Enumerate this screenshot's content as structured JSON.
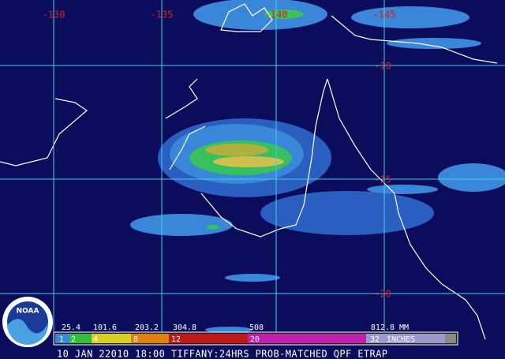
{
  "map": {
    "longitude_labels": [
      "-130",
      "-135",
      "-140",
      "-145"
    ],
    "latitude_labels": [
      "-10",
      "-15",
      "-20"
    ],
    "logo": "NOAA",
    "scale": {
      "mm_labels": [
        "25.4",
        "101.6",
        "203.2",
        "304.8",
        "508",
        "812.8 MM"
      ],
      "inch_labels": [
        "1",
        "2",
        "4",
        "8",
        "12",
        "20",
        "32"
      ],
      "inch_unit": "INCHES"
    },
    "caption": "10 JAN 22010 18:00 TIFFANY:24HRS PROB-MATCHED QPF ETRAP"
  }
}
